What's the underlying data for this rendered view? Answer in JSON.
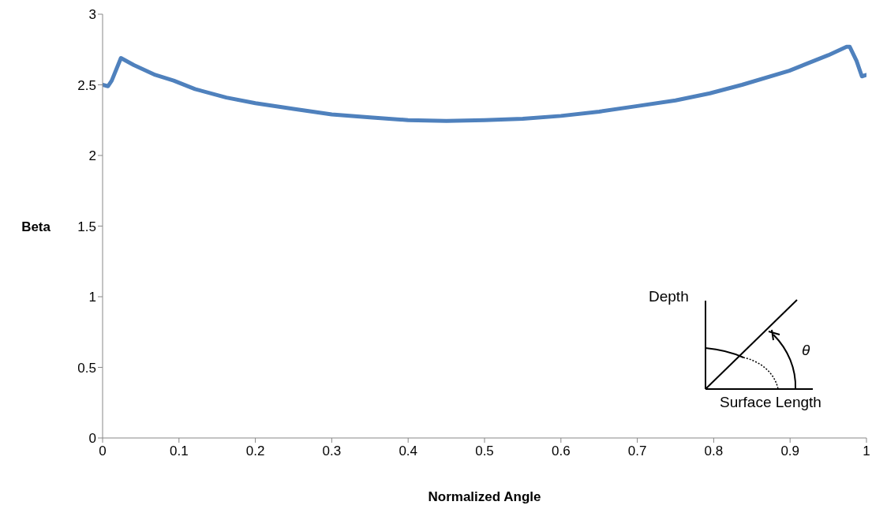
{
  "chart_data": {
    "type": "line",
    "xlabel": "Normalized Angle",
    "ylabel": "Beta",
    "x": [
      0,
      0.007,
      0.012,
      0.024,
      0.041,
      0.069,
      0.093,
      0.121,
      0.162,
      0.2,
      0.25,
      0.3,
      0.35,
      0.4,
      0.45,
      0.5,
      0.55,
      0.6,
      0.65,
      0.7,
      0.75,
      0.795,
      0.837,
      0.899,
      0.95,
      0.974,
      0.978,
      0.987,
      0.994,
      1
    ],
    "series": [
      {
        "color": "#4f81bd",
        "values": [
          2.5,
          2.49,
          2.53,
          2.69,
          2.64,
          2.57,
          2.53,
          2.47,
          2.41,
          2.37,
          2.33,
          2.29,
          2.27,
          2.25,
          2.245,
          2.25,
          2.26,
          2.28,
          2.31,
          2.35,
          2.39,
          2.44,
          2.5,
          2.6,
          2.71,
          2.77,
          2.77,
          2.67,
          2.56,
          2.57
        ]
      }
    ],
    "xlim": [
      0,
      1
    ],
    "xticks": [
      0,
      0.1,
      0.2,
      0.3,
      0.4,
      0.5,
      0.6,
      0.7,
      0.8,
      0.9,
      1
    ],
    "ylim": [
      0,
      3
    ],
    "yticks": [
      0,
      0.5,
      1,
      1.5,
      2,
      2.5,
      3
    ],
    "grid": false,
    "legend": false,
    "marker": "none",
    "line_style": "solid",
    "annotations": [
      "Depth",
      "Surface Length",
      "θ"
    ]
  }
}
